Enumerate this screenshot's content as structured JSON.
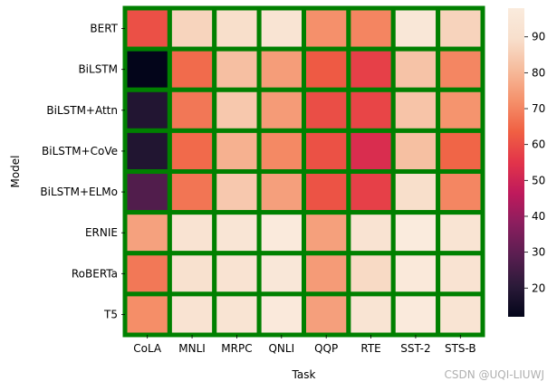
{
  "chart_data": {
    "type": "heatmap",
    "xlabel": "Task",
    "ylabel": "Model",
    "x_categories": [
      "CoLA",
      "MNLI",
      "MRPC",
      "QNLI",
      "QQP",
      "RTE",
      "SST-2",
      "STS-B"
    ],
    "y_categories": [
      "BERT",
      "BiLSTM",
      "BiLSTM+Attn",
      "BiLSTM+CoVe",
      "BiLSTM+ELMo",
      "ERNIE",
      "RoBERTa",
      "T5"
    ],
    "values": [
      [
        60.5,
        86.7,
        89.3,
        92.7,
        72.1,
        70.1,
        94.9,
        86.5
      ],
      [
        11.6,
        65.6,
        81.8,
        74.6,
        62.5,
        57.4,
        82.8,
        70.3
      ],
      [
        18.6,
        67.6,
        83.9,
        74.3,
        60.1,
        58.4,
        83.0,
        72.8
      ],
      [
        18.5,
        65.4,
        78.7,
        70.8,
        60.6,
        52.7,
        81.9,
        64.4
      ],
      [
        27.5,
        67.2,
        84.0,
        75.1,
        61.1,
        57.4,
        89.3,
        70.3
      ],
      [
        75.5,
        92.3,
        93.9,
        97.3,
        75.2,
        92.6,
        97.8,
        93.0
      ],
      [
        67.8,
        90.8,
        92.3,
        95.4,
        74.3,
        88.2,
        96.7,
        92.2
      ],
      [
        71.6,
        92.2,
        92.8,
        96.9,
        75.1,
        92.8,
        97.5,
        93.1
      ]
    ],
    "colorbar": {
      "range": [
        12,
        98
      ],
      "ticks": [
        20,
        30,
        40,
        50,
        60,
        70,
        80,
        90
      ],
      "colormap": "rocket",
      "stops": [
        "#03051a",
        "#2b1a39",
        "#5a1e51",
        "#8a1e5e",
        "#bf1a5c",
        "#e2344a",
        "#f06043",
        "#f5916b",
        "#f6bb9c",
        "#f8dfcc",
        "#faebdd"
      ]
    },
    "cell_border_color": "#008000",
    "grid": false,
    "legend": "colorbar-right"
  },
  "watermark": "CSDN @UQI-LIUWJ"
}
